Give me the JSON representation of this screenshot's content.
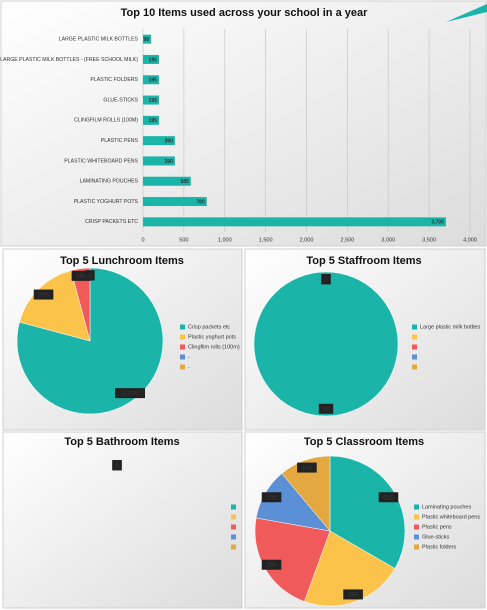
{
  "chart_data": [
    {
      "type": "bar",
      "title": "Top 10 Items used across your school in a year",
      "categories": [
        "LARGE PLASTIC MILK BOTTLES",
        "LARGE PLASTIC MILK BOTTLES - (FREE SCHOOL MILK)",
        "PLASTIC FOLDERS",
        "GLUE-STICKS",
        "CLINGFILM ROLLS (100M)",
        "PLASTIC PENS",
        "PLASTIC WHITEBOARD PENS",
        "LAMINATING POUCHES",
        "PLASTIC YOGHURT POTS",
        "CRISP PACKETS ETC"
      ],
      "values": [
        98,
        195,
        195,
        195,
        195,
        390,
        390,
        585,
        780,
        3705
      ],
      "value_labels": [
        "98",
        "195",
        "195",
        "195",
        "195",
        "390",
        "390",
        "585",
        "780",
        "3,705"
      ],
      "color": "#1ab5a8",
      "xlim": [
        0,
        4000
      ],
      "xticks": [
        0,
        500,
        {
          "value": 1000,
          "label": "1,000"
        },
        {
          "value": 1500,
          "label": "1,500"
        },
        {
          "value": 2000,
          "label": "2,000"
        },
        {
          "value": 2500,
          "label": "2,500"
        },
        {
          "value": 3000,
          "label": "3,000"
        },
        {
          "value": 3500,
          "label": "3,500"
        },
        {
          "value": 4000,
          "label": "4,000"
        }
      ],
      "grid": true
    },
    {
      "type": "pie",
      "title": "Top 5 Lunchroom Items",
      "categories": [
        "Crisp packets etc",
        "Plastic yoghurt pots",
        "Clingfilm rolls (100m)",
        "-",
        "-"
      ],
      "values": [
        3705,
        780,
        195,
        0,
        0
      ],
      "value_labels": [
        "3,705",
        "780",
        "195",
        "0",
        "0"
      ],
      "colors": [
        "#1ab5a8",
        "#fbc34a",
        "#f05a5a",
        "#5b8fd6",
        "#e3a83f"
      ]
    },
    {
      "type": "pie",
      "title": "Top 5 Staffroom Items",
      "categories": [
        "Large plastic milk bottles",
        null,
        null,
        null,
        null
      ],
      "values": [
        98,
        0,
        0,
        0,
        0
      ],
      "colors": [
        "#1ab5a8",
        "#fbc34a",
        "#f05a5a",
        "#5b8fd6",
        "#e3a83f"
      ]
    },
    {
      "type": "pie",
      "title": "Top 5 Bathroom Items",
      "categories": [
        null,
        null,
        null,
        null,
        null
      ],
      "values": [
        0,
        0,
        0,
        0,
        0
      ],
      "colors": [
        "#1ab5a8",
        "#fbc34a",
        "#f05a5a",
        "#5b8fd6",
        "#e3a83f"
      ]
    },
    {
      "type": "pie",
      "title": "Top 5 Classroom Items",
      "categories": [
        "Laminating pouches",
        "Plastic whiteboard pens",
        "Plastic pens",
        "Glue-sticks",
        "Plastic folders"
      ],
      "values": [
        585,
        390,
        390,
        195,
        195
      ],
      "colors": [
        "#1ab5a8",
        "#fbc34a",
        "#f05a5a",
        "#5b8fd6",
        "#e3a83f"
      ]
    }
  ]
}
